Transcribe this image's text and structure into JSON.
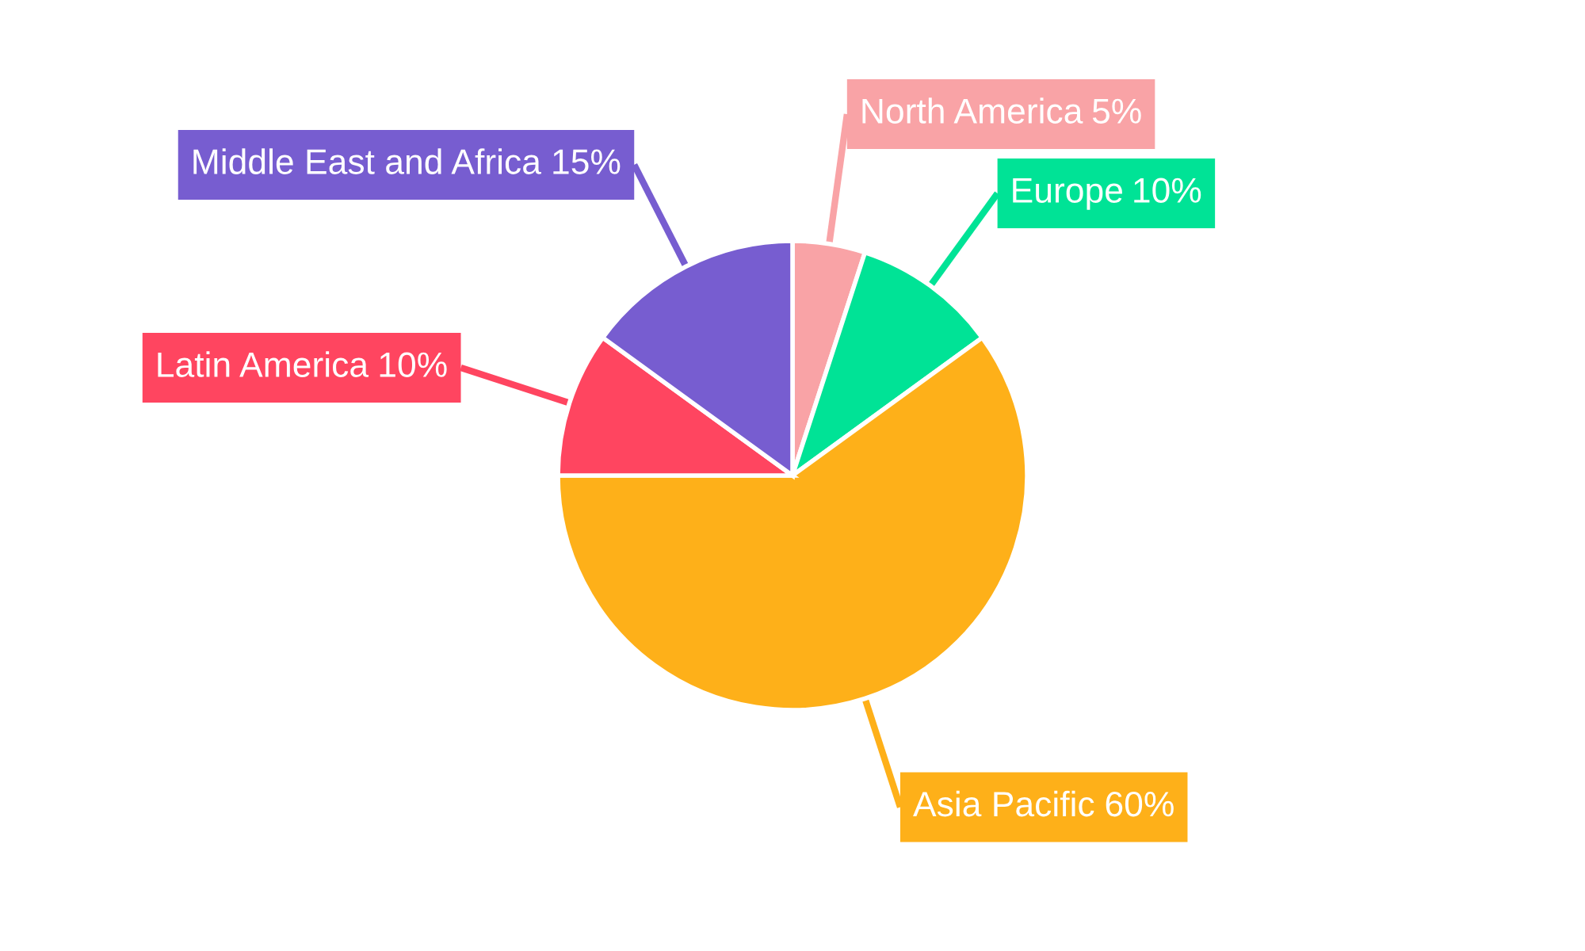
{
  "chart_data": {
    "type": "pie",
    "categories": [
      "North America",
      "Europe",
      "Asia Pacific",
      "Latin America",
      "Middle East and Africa"
    ],
    "values": [
      5,
      10,
      60,
      10,
      15
    ],
    "colors": [
      "#f9a3a6",
      "#00e396",
      "#feb019",
      "#ff4560",
      "#775dd0"
    ],
    "value_labels": [
      "5%",
      "10%",
      "60%",
      "10%",
      "15%"
    ]
  }
}
